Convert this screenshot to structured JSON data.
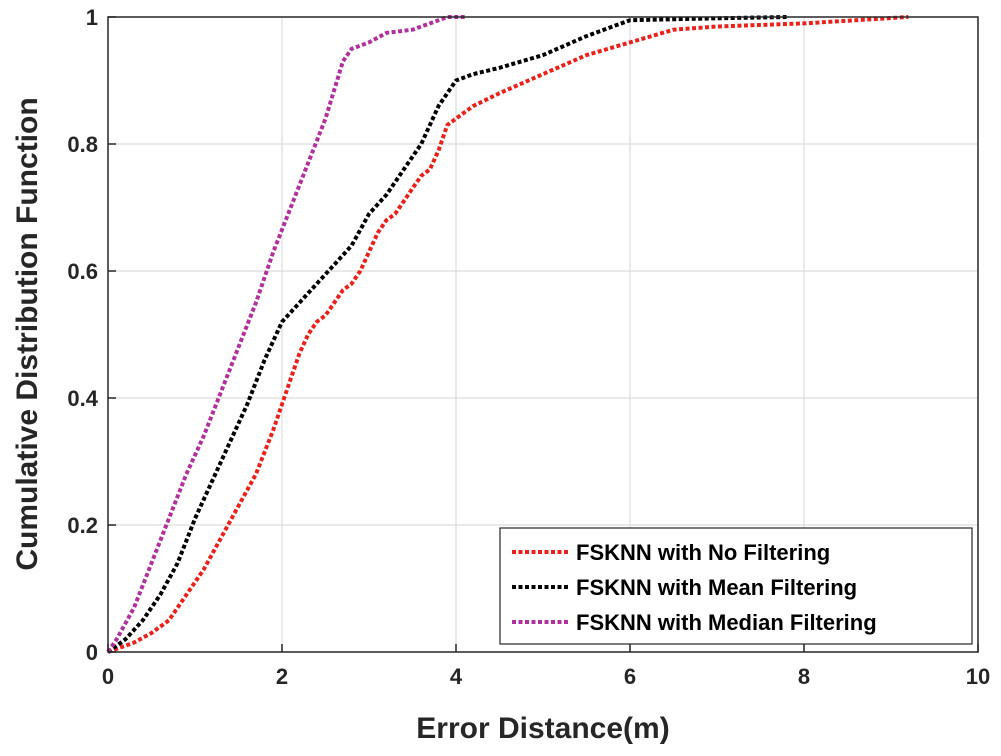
{
  "chart_data": {
    "type": "line",
    "title": "",
    "xlabel": "Error Distance(m)",
    "ylabel": "Cumulative Distribution Function",
    "xlim": [
      0,
      10
    ],
    "ylim": [
      0,
      1
    ],
    "grid": true,
    "legend_position": "bottom-right",
    "x_ticks": [
      "0",
      "2",
      "4",
      "6",
      "8",
      "10"
    ],
    "y_ticks": [
      "0",
      "0.2",
      "0.4",
      "0.6",
      "0.8",
      "1"
    ],
    "series": [
      {
        "name": "FSKNN with No Filtering",
        "color": "#e8221b",
        "points": [
          [
            0,
            0
          ],
          [
            0.3,
            0.015
          ],
          [
            0.5,
            0.03
          ],
          [
            0.7,
            0.05
          ],
          [
            0.9,
            0.09
          ],
          [
            1.1,
            0.13
          ],
          [
            1.3,
            0.18
          ],
          [
            1.5,
            0.23
          ],
          [
            1.7,
            0.28
          ],
          [
            1.9,
            0.35
          ],
          [
            2.0,
            0.39
          ],
          [
            2.1,
            0.43
          ],
          [
            2.2,
            0.47
          ],
          [
            2.3,
            0.5
          ],
          [
            2.4,
            0.52
          ],
          [
            2.5,
            0.53
          ],
          [
            2.6,
            0.55
          ],
          [
            2.7,
            0.57
          ],
          [
            2.8,
            0.58
          ],
          [
            2.9,
            0.6
          ],
          [
            3.0,
            0.63
          ],
          [
            3.1,
            0.66
          ],
          [
            3.2,
            0.68
          ],
          [
            3.3,
            0.69
          ],
          [
            3.4,
            0.71
          ],
          [
            3.5,
            0.73
          ],
          [
            3.6,
            0.75
          ],
          [
            3.7,
            0.76
          ],
          [
            3.8,
            0.79
          ],
          [
            3.9,
            0.83
          ],
          [
            4.0,
            0.84
          ],
          [
            4.2,
            0.86
          ],
          [
            4.5,
            0.88
          ],
          [
            5.0,
            0.91
          ],
          [
            5.5,
            0.94
          ],
          [
            6.0,
            0.96
          ],
          [
            6.5,
            0.98
          ],
          [
            7.0,
            0.985
          ],
          [
            8.0,
            0.99
          ],
          [
            9.2,
            1.0
          ]
        ]
      },
      {
        "name": "FSKNN with Mean Filtering",
        "color": "#000000",
        "points": [
          [
            0,
            0
          ],
          [
            0.2,
            0.02
          ],
          [
            0.4,
            0.05
          ],
          [
            0.6,
            0.09
          ],
          [
            0.8,
            0.14
          ],
          [
            1.0,
            0.21
          ],
          [
            1.2,
            0.27
          ],
          [
            1.4,
            0.33
          ],
          [
            1.6,
            0.39
          ],
          [
            1.8,
            0.46
          ],
          [
            2.0,
            0.52
          ],
          [
            2.2,
            0.55
          ],
          [
            2.4,
            0.58
          ],
          [
            2.6,
            0.61
          ],
          [
            2.8,
            0.64
          ],
          [
            3.0,
            0.69
          ],
          [
            3.2,
            0.72
          ],
          [
            3.4,
            0.76
          ],
          [
            3.6,
            0.8
          ],
          [
            3.8,
            0.86
          ],
          [
            4.0,
            0.9
          ],
          [
            4.2,
            0.91
          ],
          [
            4.5,
            0.92
          ],
          [
            5.0,
            0.94
          ],
          [
            5.5,
            0.97
          ],
          [
            6.0,
            0.995
          ],
          [
            7.0,
            0.998
          ],
          [
            7.8,
            1.0
          ]
        ]
      },
      {
        "name": "FSKNN with Median Filtering",
        "color": "#b0319c",
        "points": [
          [
            0,
            0
          ],
          [
            0.1,
            0.02
          ],
          [
            0.3,
            0.07
          ],
          [
            0.5,
            0.14
          ],
          [
            0.7,
            0.21
          ],
          [
            0.9,
            0.28
          ],
          [
            1.1,
            0.34
          ],
          [
            1.3,
            0.41
          ],
          [
            1.5,
            0.48
          ],
          [
            1.7,
            0.55
          ],
          [
            1.9,
            0.63
          ],
          [
            2.1,
            0.7
          ],
          [
            2.3,
            0.77
          ],
          [
            2.5,
            0.84
          ],
          [
            2.7,
            0.93
          ],
          [
            2.8,
            0.95
          ],
          [
            3.0,
            0.96
          ],
          [
            3.2,
            0.975
          ],
          [
            3.5,
            0.98
          ],
          [
            3.7,
            0.99
          ],
          [
            3.9,
            1.0
          ],
          [
            4.1,
            1.0
          ]
        ]
      }
    ]
  }
}
